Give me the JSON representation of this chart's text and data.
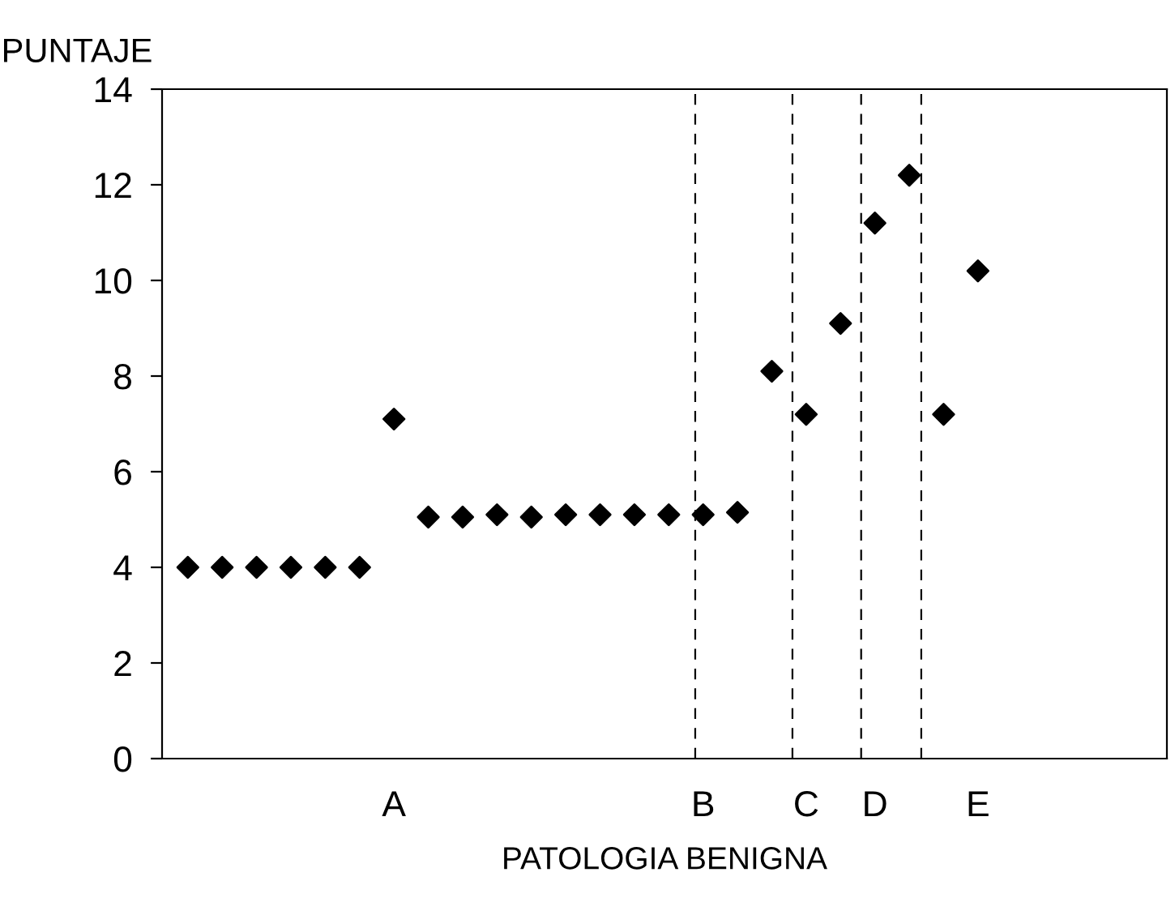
{
  "chart_data": {
    "type": "scatter",
    "ylabel": "PUNTAJE",
    "xlabel": "PATOLOGIA BENIGNA",
    "categories": [
      null,
      null,
      null,
      null,
      null,
      null,
      "A",
      null,
      null,
      null,
      null,
      null,
      null,
      null,
      null,
      "B",
      null,
      null,
      "C",
      null,
      "D",
      null,
      null,
      "E"
    ],
    "series": [
      {
        "color": "#000000",
        "values": [
          4,
          4,
          4,
          4,
          4,
          4,
          7.1,
          5.05,
          5.05,
          5.1,
          5.05,
          5.1,
          5.1,
          5.1,
          5.1,
          5.1,
          5.15,
          8.1,
          7.2,
          9.1,
          11.2,
          12.2,
          7.2,
          10.2
        ]
      }
    ],
    "ylim": [
      0,
      14
    ],
    "yticks": [
      0,
      2,
      4,
      6,
      8,
      10,
      12,
      14
    ],
    "marker": "diamond",
    "grid": false,
    "legend": false
  }
}
